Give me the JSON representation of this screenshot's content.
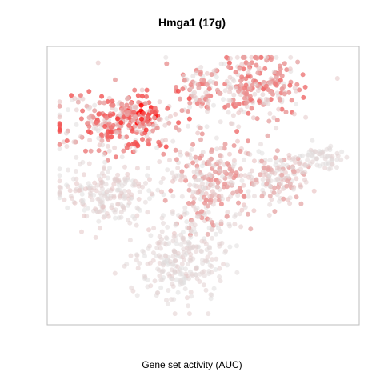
{
  "chart_data": {
    "type": "scatter",
    "title": "Hmga1 (17g)",
    "xlabel": "Gene set activity (AUC)",
    "ylabel": "",
    "color_scale": {
      "low": "#e0e0e0",
      "high": "#ff0000"
    },
    "grid": false,
    "legend": "none",
    "clusters": [
      {
        "region": "top-right",
        "cx": 0.66,
        "cy": 0.14,
        "rx": 0.15,
        "ry": 0.12,
        "n": 260,
        "activity": 0.45
      },
      {
        "region": "top-center",
        "cx": 0.47,
        "cy": 0.16,
        "rx": 0.07,
        "ry": 0.07,
        "n": 60,
        "activity": 0.4
      },
      {
        "region": "upper-left",
        "cx": 0.22,
        "cy": 0.28,
        "rx": 0.18,
        "ry": 0.1,
        "n": 260,
        "activity": 0.55
      },
      {
        "region": "upper-left-hotspot",
        "cx": 0.29,
        "cy": 0.25,
        "rx": 0.06,
        "ry": 0.04,
        "n": 70,
        "activity": 0.95
      },
      {
        "region": "left-middle",
        "cx": 0.2,
        "cy": 0.52,
        "rx": 0.14,
        "ry": 0.11,
        "n": 220,
        "activity": 0.12
      },
      {
        "region": "center",
        "cx": 0.52,
        "cy": 0.49,
        "rx": 0.12,
        "ry": 0.15,
        "n": 260,
        "activity": 0.3
      },
      {
        "region": "center-right",
        "cx": 0.74,
        "cy": 0.47,
        "rx": 0.1,
        "ry": 0.1,
        "n": 160,
        "activity": 0.22
      },
      {
        "region": "right-arm",
        "cx": 0.88,
        "cy": 0.4,
        "rx": 0.07,
        "ry": 0.04,
        "n": 60,
        "activity": 0.08
      },
      {
        "region": "bottom",
        "cx": 0.43,
        "cy": 0.76,
        "rx": 0.13,
        "ry": 0.13,
        "n": 260,
        "activity": 0.08
      }
    ]
  }
}
